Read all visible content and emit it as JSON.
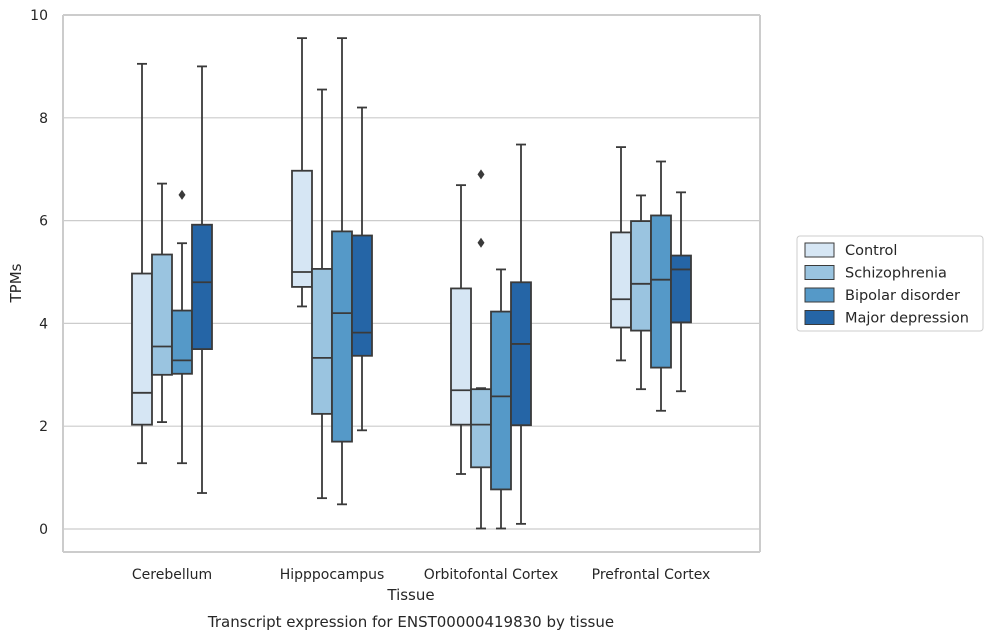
{
  "chart_data": {
    "type": "box",
    "title": "",
    "caption": "Transcript expression for ENST00000419830 by tissue",
    "xlabel": "Tissue",
    "ylabel": "TPMs",
    "ylim": [
      -0.45,
      10.05
    ],
    "yticks": [
      0,
      2,
      4,
      6,
      8,
      10
    ],
    "grid": true,
    "legend_position": "right",
    "categories": [
      "Cerebellum",
      "Hipppocampus",
      "Orbitofontal Cortex",
      "Prefrontal Cortex"
    ],
    "series": [
      {
        "name": "Control",
        "color": "#d6e6f4",
        "boxes": [
          {
            "whislo": 1.28,
            "q1": 2.03,
            "med": 2.65,
            "q3": 4.97,
            "whishi": 9.05,
            "fliers": []
          },
          {
            "whislo": 4.33,
            "q1": 4.71,
            "med": 5.0,
            "q3": 6.97,
            "whishi": 9.55,
            "fliers": []
          },
          {
            "whislo": 1.07,
            "q1": 2.03,
            "med": 2.7,
            "q3": 4.68,
            "whishi": 6.69,
            "fliers": []
          },
          {
            "whislo": 3.28,
            "q1": 3.92,
            "med": 4.47,
            "q3": 5.77,
            "whishi": 7.43,
            "fliers": []
          }
        ]
      },
      {
        "name": "Schizophrenia",
        "color": "#9ac4e0",
        "boxes": [
          {
            "whislo": 2.08,
            "q1": 3.0,
            "med": 3.55,
            "q3": 5.34,
            "whishi": 6.72,
            "fliers": []
          },
          {
            "whislo": 0.6,
            "q1": 2.24,
            "med": 3.33,
            "q3": 5.06,
            "whishi": 8.55,
            "fliers": []
          },
          {
            "whislo": 0.01,
            "q1": 1.2,
            "med": 2.03,
            "q3": 2.72,
            "whishi": 2.74,
            "fliers": [
              5.57,
              6.9
            ]
          },
          {
            "whislo": 2.72,
            "q1": 3.86,
            "med": 4.77,
            "q3": 5.99,
            "whishi": 6.49,
            "fliers": []
          }
        ]
      },
      {
        "name": "Bipolar disorder",
        "color": "#5599c8",
        "boxes": [
          {
            "whislo": 1.28,
            "q1": 3.02,
            "med": 3.28,
            "q3": 4.25,
            "whishi": 5.56,
            "fliers": [
              6.5
            ]
          },
          {
            "whislo": 0.48,
            "q1": 1.7,
            "med": 4.2,
            "q3": 5.79,
            "whishi": 9.55,
            "fliers": []
          },
          {
            "whislo": 0.01,
            "q1": 0.77,
            "med": 2.58,
            "q3": 4.23,
            "whishi": 5.05,
            "fliers": []
          },
          {
            "whislo": 2.3,
            "q1": 3.14,
            "med": 4.85,
            "q3": 6.1,
            "whishi": 7.15,
            "fliers": []
          }
        ]
      },
      {
        "name": "Major depression",
        "color": "#2565a6",
        "boxes": [
          {
            "whislo": 0.7,
            "q1": 3.5,
            "med": 4.8,
            "q3": 5.92,
            "whishi": 9.0,
            "fliers": []
          },
          {
            "whislo": 1.92,
            "q1": 3.37,
            "med": 3.82,
            "q3": 5.71,
            "whishi": 8.2,
            "fliers": []
          },
          {
            "whislo": 0.1,
            "q1": 2.02,
            "med": 3.6,
            "q3": 4.8,
            "whishi": 7.48,
            "fliers": []
          },
          {
            "whislo": 2.68,
            "q1": 4.02,
            "med": 5.05,
            "q3": 5.32,
            "whishi": 6.55,
            "fliers": []
          }
        ]
      }
    ]
  }
}
